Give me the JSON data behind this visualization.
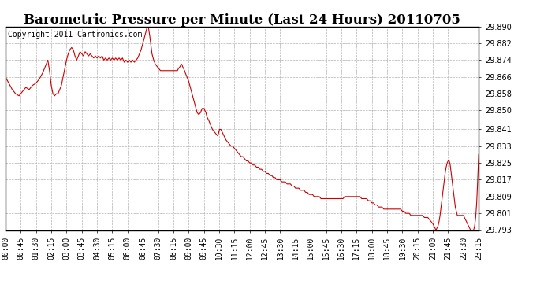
{
  "title": "Barometric Pressure per Minute (Last 24 Hours) 20110705",
  "copyright": "Copyright 2011 Cartronics.com",
  "line_color": "#cc0000",
  "background_color": "#ffffff",
  "grid_color": "#aaaaaa",
  "ylim": [
    29.793,
    29.89
  ],
  "yticks": [
    29.793,
    29.801,
    29.809,
    29.817,
    29.825,
    29.833,
    29.841,
    29.85,
    29.858,
    29.866,
    29.874,
    29.882,
    29.89
  ],
  "xtick_labels": [
    "00:00",
    "00:45",
    "01:30",
    "02:15",
    "03:00",
    "03:45",
    "04:30",
    "05:15",
    "06:00",
    "06:45",
    "07:30",
    "08:15",
    "09:00",
    "09:45",
    "10:30",
    "11:15",
    "12:00",
    "12:45",
    "13:30",
    "14:15",
    "15:00",
    "15:45",
    "16:30",
    "17:15",
    "18:00",
    "18:45",
    "19:30",
    "20:15",
    "21:00",
    "21:45",
    "22:30",
    "23:15"
  ],
  "title_fontsize": 12,
  "tick_fontsize": 7,
  "copyright_fontsize": 7,
  "detailed_points": [
    [
      0,
      29.866
    ],
    [
      10,
      29.863
    ],
    [
      20,
      29.86
    ],
    [
      30,
      29.858
    ],
    [
      40,
      29.857
    ],
    [
      50,
      29.859
    ],
    [
      60,
      29.861
    ],
    [
      70,
      29.86
    ],
    [
      80,
      29.862
    ],
    [
      90,
      29.863
    ],
    [
      100,
      29.865
    ],
    [
      110,
      29.868
    ],
    [
      120,
      29.872
    ],
    [
      125,
      29.874
    ],
    [
      130,
      29.869
    ],
    [
      135,
      29.862
    ],
    [
      140,
      29.858
    ],
    [
      145,
      29.857
    ],
    [
      150,
      29.858
    ],
    [
      155,
      29.858
    ],
    [
      160,
      29.86
    ],
    [
      165,
      29.862
    ],
    [
      170,
      29.866
    ],
    [
      175,
      29.87
    ],
    [
      180,
      29.874
    ],
    [
      185,
      29.877
    ],
    [
      190,
      29.879
    ],
    [
      195,
      29.88
    ],
    [
      200,
      29.879
    ],
    [
      205,
      29.876
    ],
    [
      210,
      29.874
    ],
    [
      215,
      29.876
    ],
    [
      220,
      29.878
    ],
    [
      225,
      29.877
    ],
    [
      230,
      29.876
    ],
    [
      235,
      29.878
    ],
    [
      240,
      29.877
    ],
    [
      245,
      29.876
    ],
    [
      250,
      29.877
    ],
    [
      255,
      29.876
    ],
    [
      260,
      29.875
    ],
    [
      265,
      29.876
    ],
    [
      270,
      29.875
    ],
    [
      275,
      29.876
    ],
    [
      280,
      29.875
    ],
    [
      285,
      29.876
    ],
    [
      290,
      29.874
    ],
    [
      295,
      29.875
    ],
    [
      300,
      29.874
    ],
    [
      305,
      29.875
    ],
    [
      310,
      29.874
    ],
    [
      315,
      29.875
    ],
    [
      320,
      29.874
    ],
    [
      325,
      29.875
    ],
    [
      330,
      29.874
    ],
    [
      335,
      29.875
    ],
    [
      340,
      29.874
    ],
    [
      345,
      29.875
    ],
    [
      350,
      29.873
    ],
    [
      355,
      29.874
    ],
    [
      360,
      29.873
    ],
    [
      365,
      29.874
    ],
    [
      370,
      29.873
    ],
    [
      375,
      29.874
    ],
    [
      380,
      29.873
    ],
    [
      385,
      29.874
    ],
    [
      390,
      29.875
    ],
    [
      395,
      29.877
    ],
    [
      400,
      29.879
    ],
    [
      405,
      29.882
    ],
    [
      410,
      29.885
    ],
    [
      415,
      29.888
    ],
    [
      418,
      29.89
    ],
    [
      420,
      29.89
    ],
    [
      422,
      29.889
    ],
    [
      425,
      29.886
    ],
    [
      428,
      29.882
    ],
    [
      432,
      29.877
    ],
    [
      437,
      29.874
    ],
    [
      442,
      29.872
    ],
    [
      447,
      29.871
    ],
    [
      452,
      29.87
    ],
    [
      457,
      29.869
    ],
    [
      462,
      29.869
    ],
    [
      467,
      29.869
    ],
    [
      472,
      29.869
    ],
    [
      477,
      29.869
    ],
    [
      482,
      29.869
    ],
    [
      487,
      29.869
    ],
    [
      492,
      29.869
    ],
    [
      497,
      29.869
    ],
    [
      502,
      29.869
    ],
    [
      507,
      29.869
    ],
    [
      510,
      29.87
    ],
    [
      515,
      29.871
    ],
    [
      518,
      29.872
    ],
    [
      520,
      29.872
    ],
    [
      522,
      29.871
    ],
    [
      525,
      29.87
    ],
    [
      528,
      29.869
    ],
    [
      530,
      29.868
    ],
    [
      535,
      29.866
    ],
    [
      540,
      29.864
    ],
    [
      545,
      29.861
    ],
    [
      550,
      29.858
    ],
    [
      555,
      29.855
    ],
    [
      560,
      29.852
    ],
    [
      565,
      29.849
    ],
    [
      570,
      29.848
    ],
    [
      575,
      29.849
    ],
    [
      580,
      29.851
    ],
    [
      585,
      29.851
    ],
    [
      588,
      29.85
    ],
    [
      591,
      29.849
    ],
    [
      594,
      29.847
    ],
    [
      597,
      29.846
    ],
    [
      600,
      29.845
    ],
    [
      605,
      29.843
    ],
    [
      610,
      29.841
    ],
    [
      615,
      29.84
    ],
    [
      620,
      29.839
    ],
    [
      625,
      29.838
    ],
    [
      628,
      29.839
    ],
    [
      631,
      29.841
    ],
    [
      635,
      29.841
    ],
    [
      638,
      29.84
    ],
    [
      641,
      29.839
    ],
    [
      644,
      29.838
    ],
    [
      647,
      29.837
    ],
    [
      650,
      29.836
    ],
    [
      655,
      29.835
    ],
    [
      660,
      29.834
    ],
    [
      665,
      29.833
    ],
    [
      670,
      29.833
    ],
    [
      675,
      29.832
    ],
    [
      680,
      29.831
    ],
    [
      685,
      29.83
    ],
    [
      690,
      29.829
    ],
    [
      695,
      29.828
    ],
    [
      700,
      29.828
    ],
    [
      705,
      29.827
    ],
    [
      710,
      29.826
    ],
    [
      715,
      29.826
    ],
    [
      720,
      29.825
    ],
    [
      725,
      29.825
    ],
    [
      730,
      29.824
    ],
    [
      735,
      29.824
    ],
    [
      740,
      29.823
    ],
    [
      745,
      29.823
    ],
    [
      750,
      29.822
    ],
    [
      755,
      29.822
    ],
    [
      760,
      29.821
    ],
    [
      765,
      29.821
    ],
    [
      770,
      29.82
    ],
    [
      775,
      29.82
    ],
    [
      780,
      29.819
    ],
    [
      785,
      29.819
    ],
    [
      790,
      29.818
    ],
    [
      795,
      29.818
    ],
    [
      800,
      29.817
    ],
    [
      805,
      29.817
    ],
    [
      810,
      29.817
    ],
    [
      815,
      29.816
    ],
    [
      820,
      29.816
    ],
    [
      825,
      29.816
    ],
    [
      830,
      29.815
    ],
    [
      835,
      29.815
    ],
    [
      840,
      29.815
    ],
    [
      845,
      29.814
    ],
    [
      850,
      29.814
    ],
    [
      855,
      29.813
    ],
    [
      860,
      29.813
    ],
    [
      865,
      29.813
    ],
    [
      870,
      29.812
    ],
    [
      875,
      29.812
    ],
    [
      880,
      29.812
    ],
    [
      885,
      29.811
    ],
    [
      890,
      29.811
    ],
    [
      895,
      29.81
    ],
    [
      900,
      29.81
    ],
    [
      905,
      29.81
    ],
    [
      910,
      29.809
    ],
    [
      915,
      29.809
    ],
    [
      920,
      29.809
    ],
    [
      925,
      29.809
    ],
    [
      930,
      29.808
    ],
    [
      935,
      29.808
    ],
    [
      940,
      29.808
    ],
    [
      945,
      29.808
    ],
    [
      950,
      29.808
    ],
    [
      955,
      29.808
    ],
    [
      960,
      29.808
    ],
    [
      965,
      29.808
    ],
    [
      970,
      29.808
    ],
    [
      975,
      29.808
    ],
    [
      980,
      29.808
    ],
    [
      985,
      29.808
    ],
    [
      990,
      29.808
    ],
    [
      995,
      29.808
    ],
    [
      1000,
      29.809
    ],
    [
      1005,
      29.809
    ],
    [
      1010,
      29.809
    ],
    [
      1015,
      29.809
    ],
    [
      1020,
      29.809
    ],
    [
      1025,
      29.809
    ],
    [
      1030,
      29.809
    ],
    [
      1035,
      29.809
    ],
    [
      1040,
      29.809
    ],
    [
      1045,
      29.809
    ],
    [
      1050,
      29.808
    ],
    [
      1055,
      29.808
    ],
    [
      1060,
      29.808
    ],
    [
      1065,
      29.808
    ],
    [
      1070,
      29.807
    ],
    [
      1075,
      29.807
    ],
    [
      1080,
      29.806
    ],
    [
      1085,
      29.806
    ],
    [
      1090,
      29.805
    ],
    [
      1095,
      29.805
    ],
    [
      1100,
      29.804
    ],
    [
      1105,
      29.804
    ],
    [
      1110,
      29.804
    ],
    [
      1115,
      29.803
    ],
    [
      1120,
      29.803
    ],
    [
      1125,
      29.803
    ],
    [
      1130,
      29.803
    ],
    [
      1135,
      29.803
    ],
    [
      1140,
      29.803
    ],
    [
      1145,
      29.803
    ],
    [
      1150,
      29.803
    ],
    [
      1155,
      29.803
    ],
    [
      1160,
      29.803
    ],
    [
      1165,
      29.803
    ],
    [
      1170,
      29.802
    ],
    [
      1175,
      29.802
    ],
    [
      1180,
      29.801
    ],
    [
      1185,
      29.801
    ],
    [
      1190,
      29.801
    ],
    [
      1195,
      29.8
    ],
    [
      1200,
      29.8
    ],
    [
      1205,
      29.8
    ],
    [
      1210,
      29.8
    ],
    [
      1215,
      29.8
    ],
    [
      1220,
      29.8
    ],
    [
      1225,
      29.8
    ],
    [
      1230,
      29.8
    ],
    [
      1235,
      29.799
    ],
    [
      1240,
      29.799
    ],
    [
      1245,
      29.799
    ],
    [
      1250,
      29.798
    ],
    [
      1255,
      29.797
    ],
    [
      1260,
      29.796
    ],
    [
      1263,
      29.795
    ],
    [
      1266,
      29.794
    ],
    [
      1269,
      29.793
    ],
    [
      1272,
      29.794
    ],
    [
      1275,
      29.795
    ],
    [
      1278,
      29.797
    ],
    [
      1281,
      29.8
    ],
    [
      1284,
      29.804
    ],
    [
      1287,
      29.808
    ],
    [
      1290,
      29.812
    ],
    [
      1293,
      29.816
    ],
    [
      1296,
      29.82
    ],
    [
      1299,
      29.823
    ],
    [
      1302,
      29.825
    ],
    [
      1305,
      29.826
    ],
    [
      1308,
      29.826
    ],
    [
      1311,
      29.824
    ],
    [
      1314,
      29.82
    ],
    [
      1317,
      29.816
    ],
    [
      1320,
      29.812
    ],
    [
      1323,
      29.808
    ],
    [
      1326,
      29.804
    ],
    [
      1329,
      29.802
    ],
    [
      1332,
      29.8
    ],
    [
      1335,
      29.8
    ],
    [
      1338,
      29.8
    ],
    [
      1341,
      29.8
    ],
    [
      1344,
      29.8
    ],
    [
      1347,
      29.8
    ],
    [
      1350,
      29.8
    ],
    [
      1353,
      29.799
    ],
    [
      1356,
      29.798
    ],
    [
      1359,
      29.797
    ],
    [
      1362,
      29.796
    ],
    [
      1365,
      29.795
    ],
    [
      1368,
      29.794
    ],
    [
      1371,
      29.793
    ],
    [
      1374,
      29.793
    ],
    [
      1377,
      29.793
    ],
    [
      1380,
      29.793
    ],
    [
      1383,
      29.795
    ],
    [
      1386,
      29.799
    ],
    [
      1389,
      29.806
    ],
    [
      1392,
      29.817
    ],
    [
      1395,
      29.829
    ]
  ]
}
